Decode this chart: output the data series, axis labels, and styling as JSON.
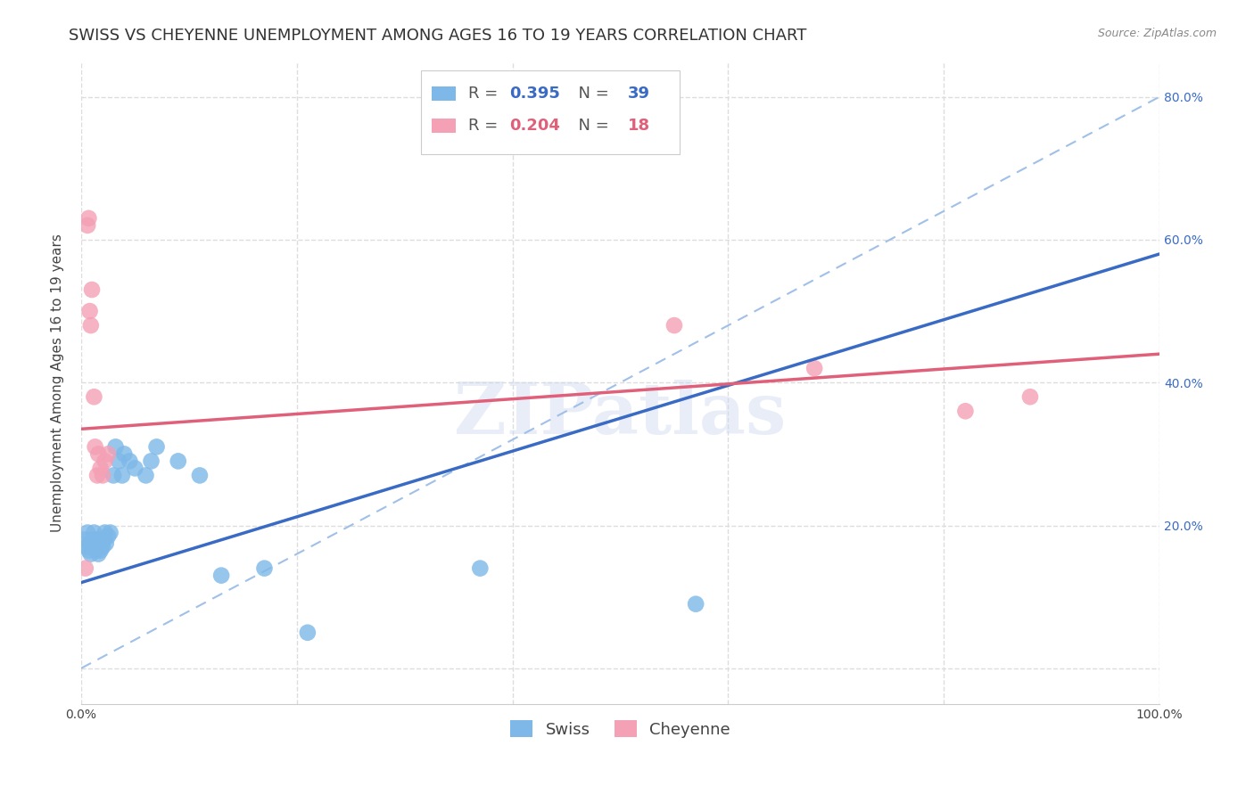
{
  "title": "SWISS VS CHEYENNE UNEMPLOYMENT AMONG AGES 16 TO 19 YEARS CORRELATION CHART",
  "source": "Source: ZipAtlas.com",
  "ylabel": "Unemployment Among Ages 16 to 19 years",
  "xlim": [
    0,
    1.0
  ],
  "ylim": [
    -0.05,
    0.85
  ],
  "swiss_color": "#7db8e8",
  "cheyenne_color": "#f4a0b5",
  "swiss_R": 0.395,
  "swiss_N": 39,
  "cheyenne_R": 0.204,
  "cheyenne_N": 18,
  "swiss_trend_color": "#3a6bc4",
  "cheyenne_trend_color": "#e0607a",
  "diagonal_color": "#a0c0e8",
  "background_color": "#ffffff",
  "grid_color": "#dddddd",
  "swiss_x": [
    0.003,
    0.005,
    0.006,
    0.007,
    0.008,
    0.009,
    0.01,
    0.011,
    0.012,
    0.013,
    0.014,
    0.015,
    0.016,
    0.017,
    0.018,
    0.019,
    0.02,
    0.021,
    0.022,
    0.023,
    0.025,
    0.027,
    0.03,
    0.032,
    0.035,
    0.038,
    0.04,
    0.045,
    0.05,
    0.06,
    0.065,
    0.07,
    0.09,
    0.11,
    0.13,
    0.17,
    0.21,
    0.37,
    0.57
  ],
  "swiss_y": [
    0.18,
    0.17,
    0.19,
    0.165,
    0.175,
    0.16,
    0.17,
    0.18,
    0.19,
    0.175,
    0.165,
    0.18,
    0.16,
    0.175,
    0.165,
    0.175,
    0.17,
    0.18,
    0.19,
    0.175,
    0.185,
    0.19,
    0.27,
    0.31,
    0.29,
    0.27,
    0.3,
    0.29,
    0.28,
    0.27,
    0.29,
    0.31,
    0.29,
    0.27,
    0.13,
    0.14,
    0.05,
    0.14,
    0.09
  ],
  "cheyenne_x": [
    0.004,
    0.006,
    0.007,
    0.008,
    0.009,
    0.01,
    0.012,
    0.013,
    0.015,
    0.016,
    0.018,
    0.02,
    0.022,
    0.025,
    0.55,
    0.68,
    0.82,
    0.88
  ],
  "cheyenne_y": [
    0.14,
    0.62,
    0.63,
    0.5,
    0.48,
    0.53,
    0.38,
    0.31,
    0.27,
    0.3,
    0.28,
    0.27,
    0.29,
    0.3,
    0.48,
    0.42,
    0.36,
    0.38
  ],
  "swiss_trend_x0": 0.0,
  "swiss_trend_y0": 0.12,
  "swiss_trend_x1": 1.0,
  "swiss_trend_y1": 0.58,
  "cheyenne_trend_x0": 0.0,
  "cheyenne_trend_y0": 0.335,
  "cheyenne_trend_x1": 1.0,
  "cheyenne_trend_y1": 0.44,
  "watermark_text": "ZIPatlas",
  "title_fontsize": 13,
  "label_fontsize": 11,
  "tick_fontsize": 10,
  "legend_fontsize": 13
}
